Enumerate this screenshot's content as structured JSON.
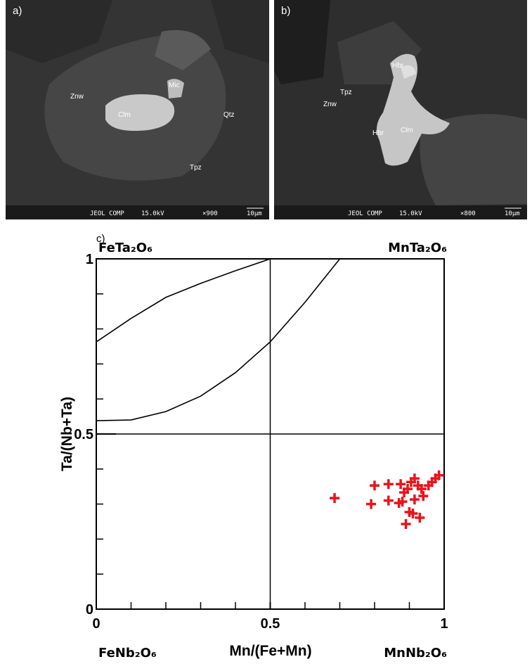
{
  "panels": [
    {
      "label": "a)",
      "minerals": [
        "Znw",
        "Mic",
        "Clm",
        "Qtz",
        "Tpz"
      ],
      "footer": {
        "instrument": "JEOL COMP",
        "voltage": "15.0kV",
        "magnification": "×900",
        "scale": "10μm"
      }
    },
    {
      "label": "b)",
      "minerals": [
        "Hbr",
        "Tpz",
        "Znw",
        "Hbr",
        "Clm"
      ],
      "footer": {
        "instrument": "JEOL COMP",
        "voltage": "15.0kV",
        "magnification": "×800",
        "scale": "10μm"
      }
    }
  ],
  "chart_data": {
    "type": "scatter",
    "panel_label": "c)",
    "xlabel": "Mn/(Fe+Mn)",
    "ylabel": "Ta/(Nb+Ta)",
    "corner_labels": {
      "top_left": "FeTa₂O₆",
      "top_right": "MnTa₂O₆",
      "bottom_left": "FeNb₂O₆",
      "bottom_right": "MnNb₂O₆"
    },
    "xlim": [
      0,
      1
    ],
    "ylim": [
      0,
      1
    ],
    "xticks": [
      0,
      0.5,
      1
    ],
    "yticks": [
      0,
      0.5,
      1
    ],
    "xminorticks": [
      0.1,
      0.2,
      0.3,
      0.4,
      0.6,
      0.7,
      0.8,
      0.9
    ],
    "yminorticks": [
      0.1,
      0.2,
      0.3,
      0.4,
      0.6,
      0.7,
      0.8,
      0.9
    ],
    "dividers": {
      "x": 0.5,
      "y": 0.5
    },
    "curves": [
      {
        "x": [
          0,
          0.1,
          0.2,
          0.3,
          0.4,
          0.5
        ],
        "values": [
          0.763,
          0.83,
          0.89,
          0.93,
          0.966,
          1
        ]
      },
      {
        "x": [
          0,
          0.1,
          0.2,
          0.3,
          0.4,
          0.5,
          0.6,
          0.7
        ],
        "values": [
          0.538,
          0.54,
          0.564,
          0.608,
          0.675,
          0.763,
          0.876,
          1
        ]
      }
    ],
    "x": [
      0.685,
      0.8,
      0.79,
      0.84,
      0.84,
      0.875,
      0.885,
      0.895,
      0.905,
      0.915,
      0.925,
      0.935,
      0.955,
      0.965,
      0.975,
      0.985,
      0.94,
      0.915,
      0.88,
      0.87,
      0.91,
      0.89,
      0.9,
      0.93
    ],
    "series": [
      {
        "color": "#e8141c",
        "values": [
          0.317,
          0.353,
          0.3,
          0.357,
          0.31,
          0.357,
          0.333,
          0.343,
          0.363,
          0.373,
          0.353,
          0.343,
          0.353,
          0.363,
          0.373,
          0.382,
          0.323,
          0.313,
          0.307,
          0.303,
          0.273,
          0.243,
          0.277,
          0.261
        ]
      }
    ]
  }
}
